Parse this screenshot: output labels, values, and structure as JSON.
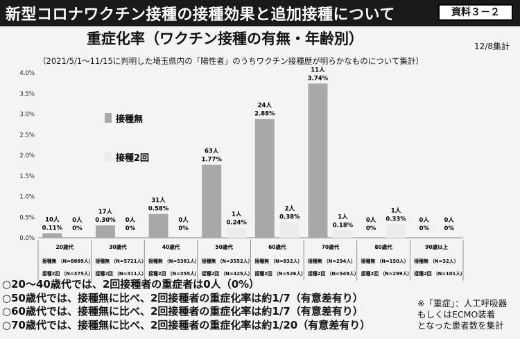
{
  "header": {
    "title": "新型コロナワクチン接種の接種効果と追加接種について",
    "doc_ref": "資料３－２"
  },
  "chart_header": {
    "subtitle": "重症化率（ワクチン接種の有無・年齢別）",
    "tally_date": "12/8集計",
    "scope": "（2021/5/1～11/15に判明した埼玉県内の「陽性者」のうちワクチン接種歴が明らかなものについて集計）"
  },
  "chart_data": {
    "type": "bar",
    "categories": [
      "20歳代",
      "30歳代",
      "40歳代",
      "50歳代",
      "60歳代",
      "70歳代",
      "80歳代",
      "90歳以上"
    ],
    "series": [
      {
        "name": "接種無",
        "color": "#a8a8a8",
        "values": [
          0.11,
          0.3,
          0.58,
          1.77,
          2.88,
          3.74,
          0,
          0
        ],
        "value_labels": [
          "0.11%",
          "0.30%",
          "0.58%",
          "1.77%",
          "2.88%",
          "3.74%",
          "0%",
          "0%"
        ],
        "count_labels": [
          "10人",
          "17人",
          "31人",
          "63人",
          "24人",
          "11人",
          "0人",
          "0人"
        ],
        "n_labels": [
          "接種無 （N=8889人）",
          "接種無 （N=5721人）",
          "接種無 （N=5381人）",
          "接種無 （N=3552人）",
          "接種無 （N=832人）",
          "接種無 （N=294人）",
          "接種無 （N=150人）",
          "接種無 （N=32人）"
        ]
      },
      {
        "name": "接種2回",
        "color": "#ececec",
        "values": [
          0,
          0,
          0,
          0.24,
          0.38,
          0.18,
          0.33,
          0
        ],
        "value_labels": [
          "0%",
          "0%",
          "0%",
          "0.24%",
          "0.38%",
          "0.18%",
          "0.33%",
          "0%"
        ],
        "count_labels": [
          "0人",
          "0人",
          "0人",
          "1人",
          "2人",
          "1人",
          "1人",
          "0人"
        ],
        "n_labels": [
          "接種2回 （N=375人）",
          "接種2回 （N=311人）",
          "接種2回 （N=355人）",
          "接種2回 （N=425人）",
          "接種2回 （N=526人）",
          "接種2回 （N=549人）",
          "接種2回 （N=299人）",
          "接種2回 （N=101人）"
        ]
      }
    ],
    "ylim": [
      0,
      4.0
    ],
    "yticks": [
      "0.0%",
      "0.5%",
      "1.0%",
      "1.5%",
      "2.0%",
      "2.5%",
      "3.0%",
      "3.5%",
      "4.0%"
    ],
    "ytick_values": [
      0,
      0.5,
      1.0,
      1.5,
      2.0,
      2.5,
      3.0,
      3.5,
      4.0
    ],
    "legend": [
      "接種無",
      "接種2回"
    ],
    "legend_position": "upper-left",
    "grid": false
  },
  "findings": [
    "○20～40歳代では、2回接種者の重症者は0人（0%）",
    "○50歳代では、接種無に比べ、2回接種者の重症化率は約1/7（有意差有り）",
    "○60歳代では、接種無に比べ、2回接種者の重症化率は約1/7（有意差有り）",
    "○70歳代では、接種無に比べ、2回接種者の重症化率は約1/20（有意差有り）"
  ],
  "footnote": [
    "※「重症」：人工呼吸器",
    "もしくはECMO装着",
    "となった患者数を集計"
  ]
}
